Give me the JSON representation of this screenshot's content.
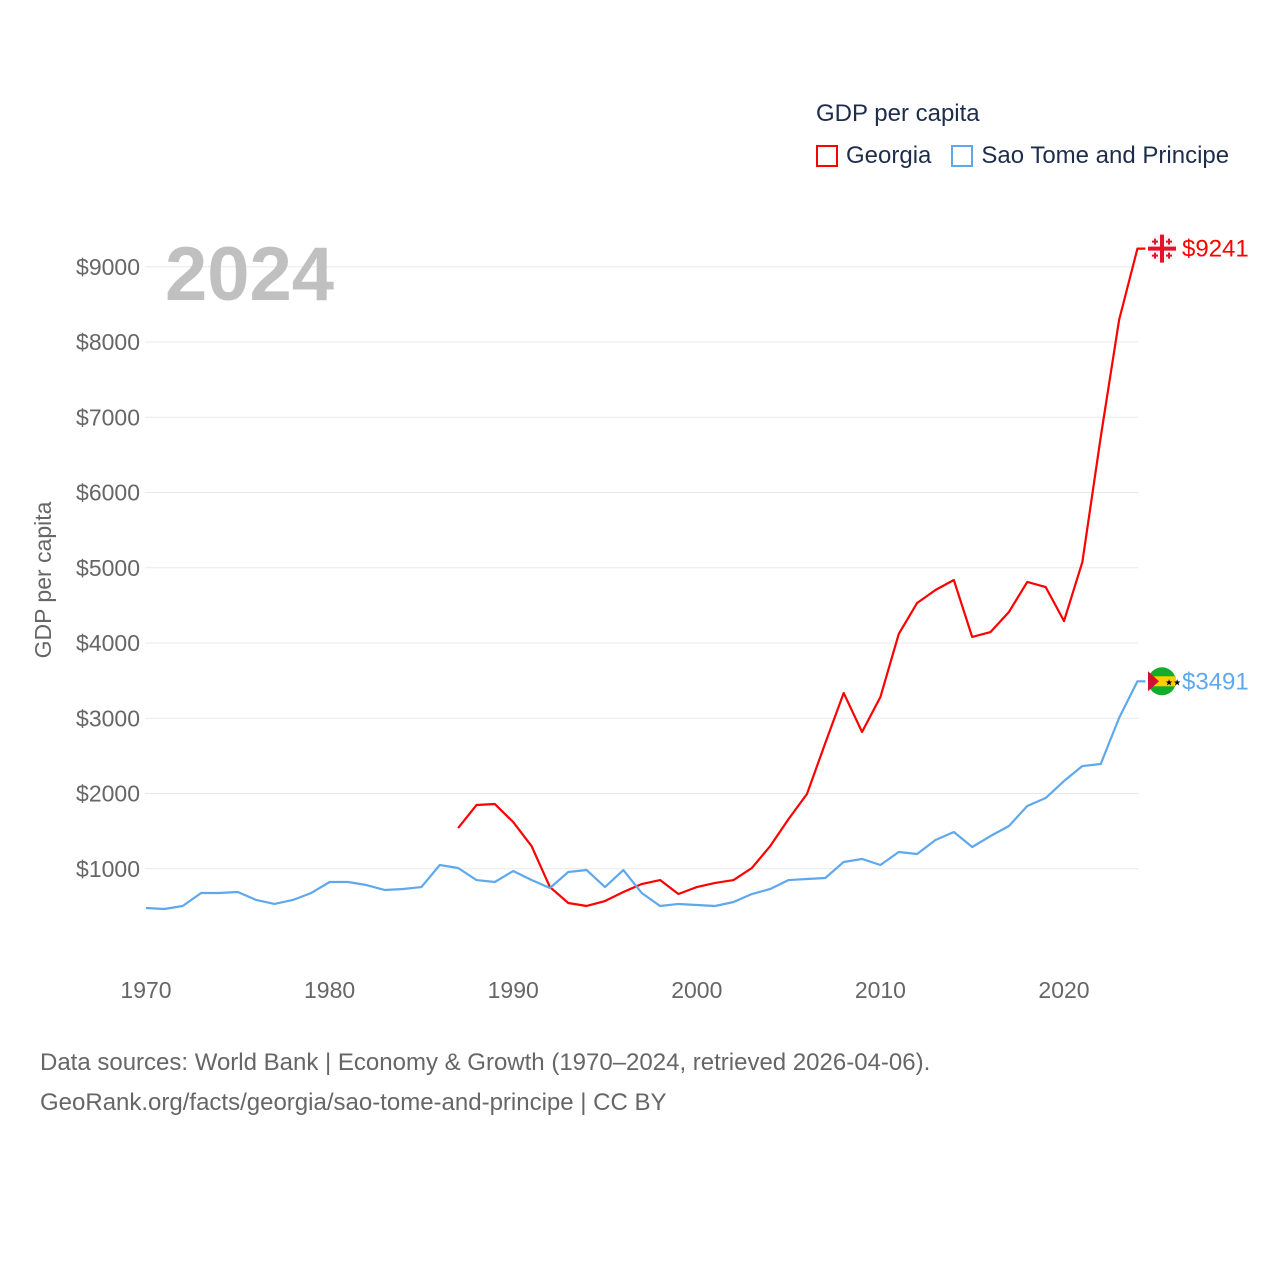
{
  "chart_data": {
    "type": "line",
    "title": "GDP per capita",
    "year_label": "2024",
    "ylabel": "GDP per capita",
    "xlabel": "",
    "xlim": [
      1970,
      2024
    ],
    "ylim": [
      0,
      9500
    ],
    "grid": true,
    "legend_position": "top-right",
    "x_ticks": [
      1970,
      1980,
      1990,
      2000,
      2010,
      2020
    ],
    "y_ticks": [
      1000,
      2000,
      3000,
      4000,
      5000,
      6000,
      7000,
      8000,
      9000
    ],
    "y_tick_labels": [
      "$1000",
      "$2000",
      "$3000",
      "$4000",
      "$5000",
      "$6000",
      "$7000",
      "$8000",
      "$9000"
    ],
    "series": [
      {
        "name": "Georgia",
        "color": "#ff0000",
        "end_label": "$9241",
        "x": [
          1987,
          1988,
          1989,
          1990,
          1991,
          1992,
          1993,
          1994,
          1995,
          1996,
          1997,
          1998,
          1999,
          2000,
          2001,
          2002,
          2003,
          2004,
          2005,
          2006,
          2007,
          2008,
          2009,
          2010,
          2011,
          2012,
          2013,
          2014,
          2015,
          2016,
          2017,
          2018,
          2019,
          2020,
          2021,
          2022,
          2023,
          2024
        ],
        "values": [
          1541,
          1847,
          1860,
          1621,
          1302,
          757,
          545,
          505,
          571,
          691,
          797,
          850,
          664,
          757,
          811,
          850,
          1010,
          1302,
          1661,
          1993,
          2671,
          3336,
          2817,
          3282,
          4120,
          4532,
          4704,
          4837,
          4080,
          4146,
          4412,
          4811,
          4744,
          4292,
          5076,
          6737,
          8292,
          9241
        ]
      },
      {
        "name": "Sao Tome and Principe",
        "color": "#5ea8ee",
        "end_label": "$3491",
        "x": [
          1970,
          1971,
          1972,
          1973,
          1974,
          1975,
          1976,
          1977,
          1978,
          1979,
          1980,
          1981,
          1982,
          1983,
          1984,
          1985,
          1986,
          1987,
          1988,
          1989,
          1990,
          1991,
          1992,
          1993,
          1994,
          1995,
          1996,
          1997,
          1998,
          1999,
          2000,
          2001,
          2002,
          2003,
          2004,
          2005,
          2006,
          2007,
          2008,
          2009,
          2010,
          2011,
          2012,
          2013,
          2014,
          2015,
          2016,
          2017,
          2018,
          2019,
          2020,
          2021,
          2022,
          2023,
          2024
        ],
        "values": [
          478,
          465,
          505,
          678,
          678,
          691,
          585,
          532,
          585,
          678,
          824,
          824,
          784,
          718,
          731,
          757,
          1050,
          1010,
          850,
          824,
          970,
          850,
          744,
          957,
          983,
          757,
          983,
          678,
          505,
          532,
          518,
          505,
          558,
          664,
          731,
          850,
          864,
          877,
          1090,
          1130,
          1050,
          1223,
          1196,
          1382,
          1488,
          1289,
          1435,
          1568,
          1834,
          1940,
          2166,
          2365,
          2392,
          3003,
          3491
        ]
      }
    ]
  },
  "footer": {
    "line1": "Data sources: World Bank | Economy & Growth (1970–2024, retrieved 2026-04-06).",
    "line2": "GeoRank.org/facts/georgia/sao-tome-and-principe | CC BY"
  }
}
